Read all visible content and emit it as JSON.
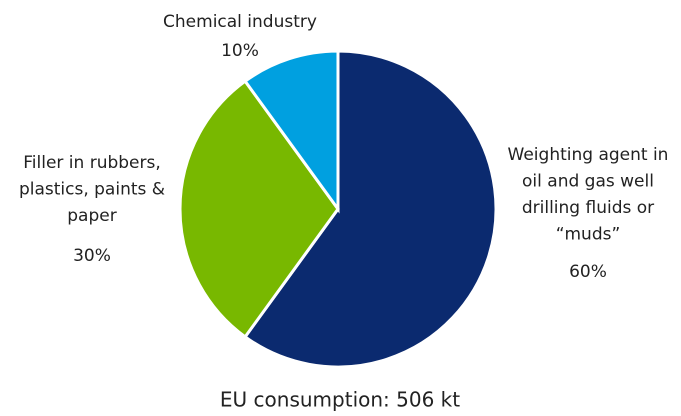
{
  "chart_data": {
    "type": "pie",
    "title": "EU consumption: 506 kt",
    "categories": [
      "Weighting agent in\noil and gas well\ndrilling fluids or\n“muds”",
      "Filler in rubbers,\nplastics, paints &\npaper",
      "Chemical industry"
    ],
    "values": [
      60,
      30,
      10
    ],
    "value_labels": [
      "60%",
      "30%",
      "10%"
    ],
    "colors": [
      "#0b2a6f",
      "#78b800",
      "#00a0e0"
    ]
  }
}
